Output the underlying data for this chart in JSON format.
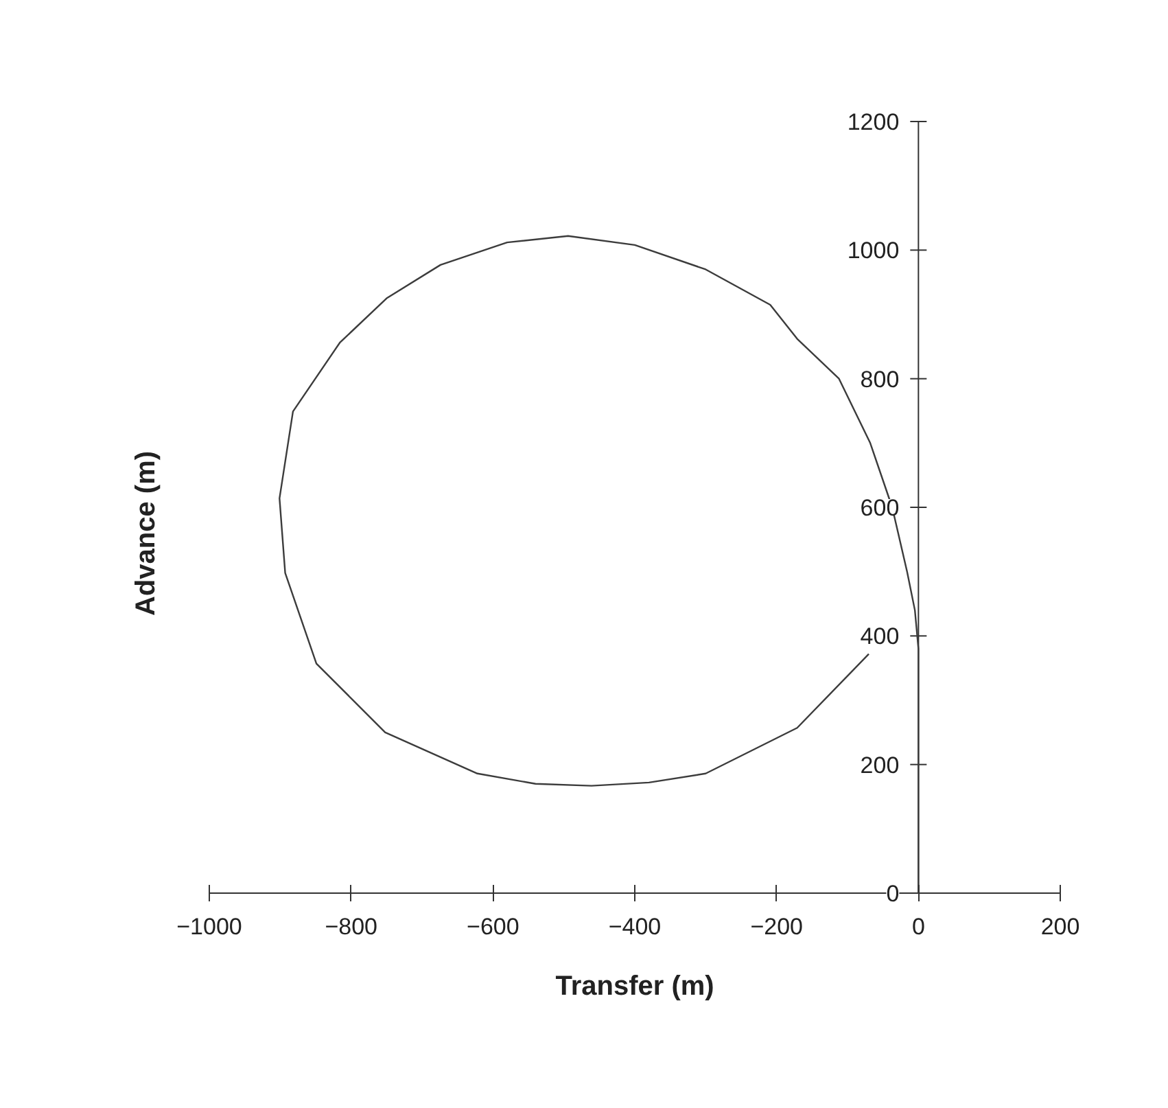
{
  "chart_data": {
    "type": "line",
    "xlabel": "Transfer (m)",
    "ylabel": "Advance (m)",
    "xlim": [
      -1000,
      200
    ],
    "ylim": [
      0,
      1200
    ],
    "xticks": [
      -1000,
      -800,
      -600,
      -400,
      -200,
      0,
      200
    ],
    "yticks": [
      0,
      200,
      400,
      600,
      800,
      1000,
      1200
    ],
    "grid": false,
    "marker": "none",
    "line_style": "solid",
    "series": [
      {
        "color": "#3c3c3c",
        "x": [
          0,
          0,
          -5,
          -16,
          -37,
          -68,
          -112,
          -171,
          -209,
          -300,
          -400,
          -494,
          -580,
          -674,
          -750,
          -816,
          -882,
          -901,
          -893,
          -849,
          -752,
          -622,
          -540,
          -461,
          -380,
          -300,
          -171,
          -70
        ],
        "values": [
          0,
          380,
          440,
          500,
          600,
          700,
          800,
          862,
          915,
          970,
          1008,
          1022,
          1012,
          977,
          925,
          856,
          749,
          614,
          498,
          357,
          250,
          186,
          170,
          167,
          172,
          186,
          257,
          372
        ]
      }
    ]
  }
}
